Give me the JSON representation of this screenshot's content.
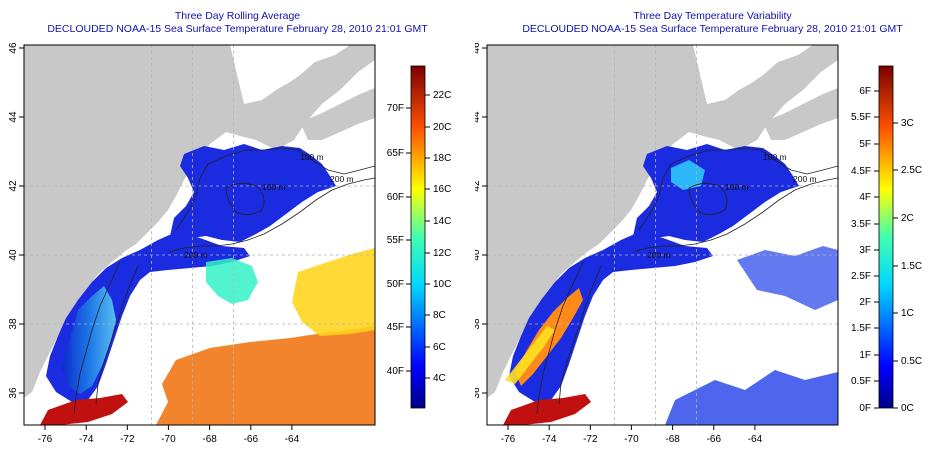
{
  "colors": {
    "land": "#c8c8c8",
    "ocean": "#ffffff",
    "title": "#1010b0",
    "contour": "#222222",
    "grid": "#b4b4b4"
  },
  "shared": {
    "x_ticks": [
      "-76",
      "-74",
      "-72",
      "-70",
      "-68",
      "-66",
      "-64"
    ],
    "y_ticks": [
      "36",
      "38",
      "40",
      "42",
      "44",
      "46"
    ],
    "contour_labels": [
      "100 m",
      "200 m",
      "100 m",
      "200 m"
    ]
  },
  "panels": {
    "left": {
      "title": "Three Day Rolling Average",
      "subtitle": "DECLOUDED NOAA-15 Sea Surface Temperature February 28, 2010 21:01 GMT",
      "colorbar": {
        "fahrenheit": [
          "70F",
          "65F",
          "60F",
          "55F",
          "50F",
          "45F",
          "40F"
        ],
        "celsius": [
          "22C",
          "20C",
          "18C",
          "16C",
          "14C",
          "12C",
          "10C",
          "8C",
          "6C",
          "4C"
        ]
      }
    },
    "right": {
      "title": "Three Day Temperature Variability",
      "subtitle": "DECLOUDED NOAA-15 Sea Surface Temperature February 28, 2010 21:01 GMT",
      "colorbar": {
        "fahrenheit": [
          "6F",
          "5.5F",
          "5F",
          "4.5F",
          "4F",
          "3.5F",
          "3F",
          "2.5F",
          "2F",
          "1.5F",
          "1F",
          "0.5F",
          "0F"
        ],
        "celsius": [
          "3C",
          "2.5C",
          "2C",
          "1.5C",
          "1C",
          "0.5C",
          "0C"
        ]
      }
    }
  }
}
